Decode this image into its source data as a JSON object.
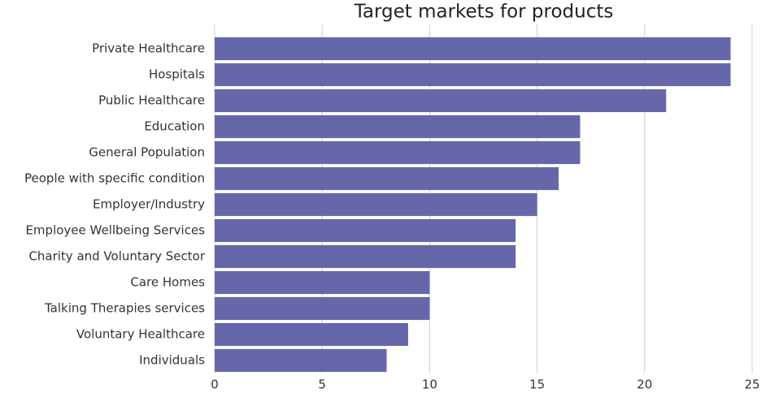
{
  "chart_data": {
    "type": "hbar",
    "title": "Target markets for products",
    "categories": [
      "Private Healthcare",
      "Hospitals",
      "Public Healthcare",
      "Education",
      "General Population",
      "People with specific condition",
      "Employer/Industry",
      "Employee Wellbeing Services",
      "Charity and Voluntary Sector",
      "Care Homes",
      "Talking Therapies services",
      "Voluntary Healthcare",
      "Individuals"
    ],
    "values": [
      24,
      24,
      21,
      17,
      17,
      16,
      15,
      14,
      14,
      10,
      10,
      9,
      8
    ],
    "color": "#6667ab",
    "xlim": [
      0,
      25
    ],
    "xticks": [
      0,
      5,
      10,
      15,
      20,
      25
    ],
    "grid": true
  }
}
